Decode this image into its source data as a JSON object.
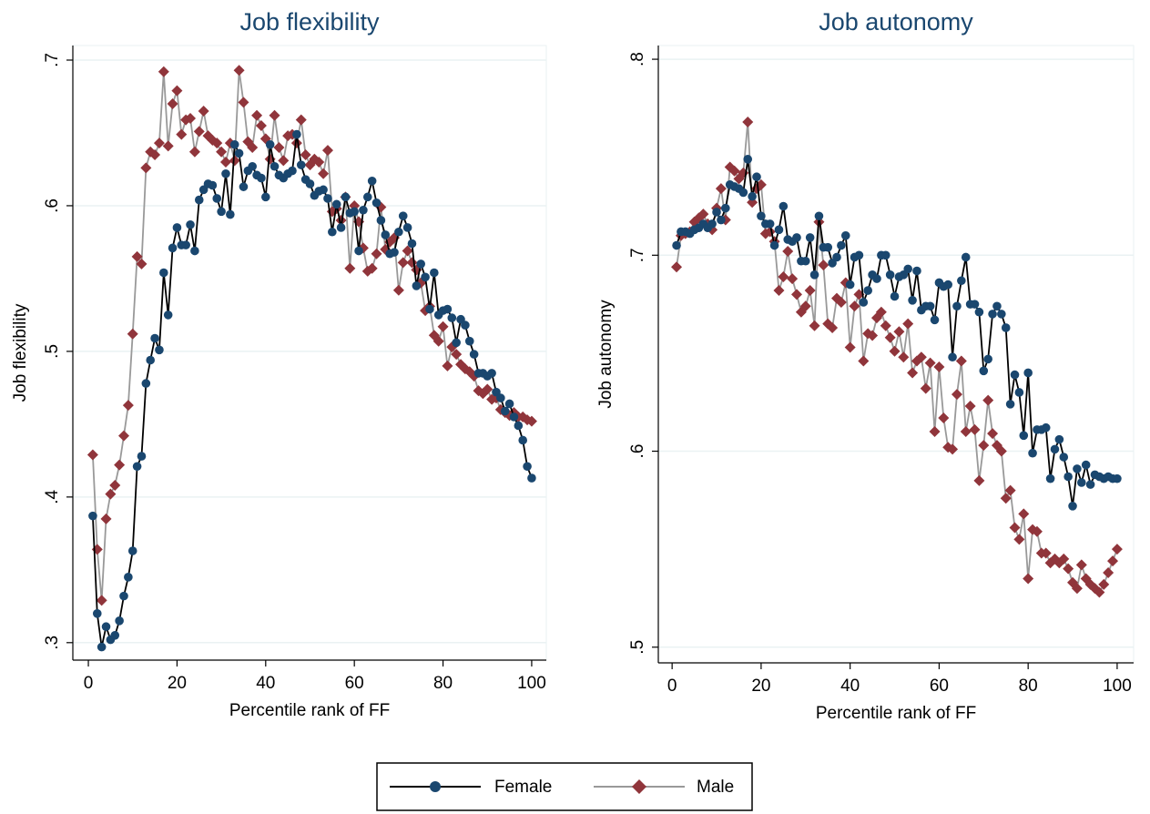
{
  "chart_data": [
    {
      "type": "line",
      "title": "Job flexibility",
      "xlabel": "Percentile rank of FF",
      "ylabel": "Job flexibility",
      "x": [
        1,
        2,
        3,
        4,
        5,
        6,
        7,
        8,
        9,
        10,
        11,
        12,
        13,
        14,
        15,
        16,
        17,
        18,
        19,
        20,
        21,
        22,
        23,
        24,
        25,
        26,
        27,
        28,
        29,
        30,
        31,
        32,
        33,
        34,
        35,
        36,
        37,
        38,
        39,
        40,
        41,
        42,
        43,
        44,
        45,
        46,
        47,
        48,
        49,
        50,
        51,
        52,
        53,
        54,
        55,
        56,
        57,
        58,
        59,
        60,
        61,
        62,
        63,
        64,
        65,
        66,
        67,
        68,
        69,
        70,
        71,
        72,
        73,
        74,
        75,
        76,
        77,
        78,
        79,
        80,
        81,
        82,
        83,
        84,
        85,
        86,
        87,
        88,
        89,
        90,
        91,
        92,
        93,
        94,
        95,
        96,
        97,
        98,
        99,
        100
      ],
      "series": [
        {
          "name": "Female",
          "color": "#1a476f",
          "line_color": "#000000",
          "marker": "circle",
          "values": [
            0.387,
            0.32,
            0.297,
            0.311,
            0.302,
            0.305,
            0.315,
            0.332,
            0.345,
            0.363,
            0.421,
            0.428,
            0.478,
            0.494,
            0.509,
            0.501,
            0.554,
            0.525,
            0.571,
            0.585,
            0.573,
            0.573,
            0.587,
            0.569,
            0.604,
            0.611,
            0.615,
            0.614,
            0.605,
            0.596,
            0.622,
            0.594,
            0.642,
            0.636,
            0.613,
            0.624,
            0.627,
            0.621,
            0.619,
            0.606,
            0.642,
            0.627,
            0.621,
            0.619,
            0.622,
            0.624,
            0.649,
            0.628,
            0.618,
            0.615,
            0.607,
            0.61,
            0.611,
            0.605,
            0.582,
            0.601,
            0.585,
            0.606,
            0.595,
            0.596,
            0.569,
            0.597,
            0.606,
            0.617,
            0.602,
            0.59,
            0.58,
            0.567,
            0.568,
            0.582,
            0.593,
            0.585,
            0.574,
            0.545,
            0.56,
            0.551,
            0.529,
            0.554,
            0.525,
            0.528,
            0.529,
            0.523,
            0.506,
            0.522,
            0.518,
            0.507,
            0.498,
            0.485,
            0.485,
            0.483,
            0.485,
            0.472,
            0.468,
            0.459,
            0.464,
            0.455,
            0.449,
            0.439,
            0.421,
            0.413
          ]
        },
        {
          "name": "Male",
          "color": "#90353b",
          "line_color": "#999999",
          "marker": "diamond",
          "values": [
            0.429,
            0.364,
            0.329,
            0.385,
            0.402,
            0.408,
            0.422,
            0.442,
            0.463,
            0.512,
            0.565,
            0.56,
            0.626,
            0.637,
            0.635,
            0.643,
            0.692,
            0.641,
            0.67,
            0.679,
            0.649,
            0.659,
            0.66,
            0.637,
            0.651,
            0.665,
            0.648,
            0.645,
            0.643,
            0.637,
            0.63,
            0.643,
            0.631,
            0.693,
            0.671,
            0.644,
            0.64,
            0.662,
            0.655,
            0.646,
            0.632,
            0.662,
            0.64,
            0.631,
            0.648,
            0.649,
            0.643,
            0.659,
            0.635,
            0.628,
            0.632,
            0.63,
            0.622,
            0.638,
            0.596,
            0.598,
            0.59,
            0.606,
            0.557,
            0.6,
            0.589,
            0.571,
            0.555,
            0.557,
            0.567,
            0.599,
            0.57,
            0.575,
            0.578,
            0.542,
            0.561,
            0.569,
            0.561,
            0.556,
            0.547,
            0.528,
            0.531,
            0.511,
            0.507,
            0.517,
            0.49,
            0.503,
            0.498,
            0.491,
            0.488,
            0.486,
            0.483,
            0.473,
            0.471,
            0.474,
            0.467,
            0.468,
            0.46,
            0.458,
            0.456,
            0.458,
            0.455,
            0.455,
            0.453,
            0.452
          ]
        }
      ],
      "xlim": [
        -3.5,
        103.3
      ],
      "xticks": [
        0,
        20,
        40,
        60,
        80,
        100
      ],
      "ylim": [
        0.288,
        0.71
      ],
      "yticks": [
        {
          "value": 0.3,
          "label": ".3"
        },
        {
          "value": 0.4,
          "label": ".4"
        },
        {
          "value": 0.5,
          "label": ".5"
        },
        {
          "value": 0.6,
          "label": ".6"
        },
        {
          "value": 0.7,
          "label": ".7"
        }
      ],
      "grid": true
    },
    {
      "type": "line",
      "title": "Job autonomy",
      "xlabel": "Percentile rank of FF",
      "ylabel": "Job autonomy",
      "x": [
        1,
        2,
        3,
        4,
        5,
        6,
        7,
        8,
        9,
        10,
        11,
        12,
        13,
        14,
        15,
        16,
        17,
        18,
        19,
        20,
        21,
        22,
        23,
        24,
        25,
        26,
        27,
        28,
        29,
        30,
        31,
        32,
        33,
        34,
        35,
        36,
        37,
        38,
        39,
        40,
        41,
        42,
        43,
        44,
        45,
        46,
        47,
        48,
        49,
        50,
        51,
        52,
        53,
        54,
        55,
        56,
        57,
        58,
        59,
        60,
        61,
        62,
        63,
        64,
        65,
        66,
        67,
        68,
        69,
        70,
        71,
        72,
        73,
        74,
        75,
        76,
        77,
        78,
        79,
        80,
        81,
        82,
        83,
        84,
        85,
        86,
        87,
        88,
        89,
        90,
        91,
        92,
        93,
        94,
        95,
        96,
        97,
        98,
        99,
        100
      ],
      "series": [
        {
          "name": "Female",
          "color": "#1a476f",
          "line_color": "#000000",
          "marker": "circle",
          "values": [
            0.705,
            0.712,
            0.712,
            0.711,
            0.713,
            0.714,
            0.716,
            0.714,
            0.716,
            0.722,
            0.718,
            0.724,
            0.736,
            0.735,
            0.734,
            0.732,
            0.749,
            0.73,
            0.74,
            0.72,
            0.716,
            0.716,
            0.705,
            0.713,
            0.725,
            0.708,
            0.707,
            0.709,
            0.697,
            0.697,
            0.709,
            0.69,
            0.72,
            0.704,
            0.704,
            0.696,
            0.699,
            0.705,
            0.71,
            0.685,
            0.699,
            0.7,
            0.676,
            0.682,
            0.69,
            0.688,
            0.7,
            0.7,
            0.69,
            0.679,
            0.689,
            0.69,
            0.693,
            0.677,
            0.692,
            0.672,
            0.674,
            0.674,
            0.667,
            0.686,
            0.684,
            0.685,
            0.648,
            0.674,
            0.687,
            0.699,
            0.675,
            0.675,
            0.671,
            0.641,
            0.647,
            0.67,
            0.674,
            0.67,
            0.663,
            0.624,
            0.639,
            0.63,
            0.608,
            0.64,
            0.599,
            0.611,
            0.611,
            0.612,
            0.586,
            0.601,
            0.606,
            0.597,
            0.587,
            0.572,
            0.591,
            0.584,
            0.593,
            0.583,
            0.588,
            0.587,
            0.586,
            0.587,
            0.586,
            0.586
          ]
        },
        {
          "name": "Male",
          "color": "#90353b",
          "line_color": "#999999",
          "marker": "diamond",
          "values": [
            0.694,
            0.71,
            0.711,
            0.712,
            0.717,
            0.719,
            0.721,
            0.716,
            0.713,
            0.724,
            0.734,
            0.718,
            0.745,
            0.743,
            0.739,
            0.742,
            0.768,
            0.727,
            0.734,
            0.736,
            0.711,
            0.712,
            0.707,
            0.682,
            0.689,
            0.702,
            0.688,
            0.68,
            0.671,
            0.674,
            0.682,
            0.664,
            0.717,
            0.695,
            0.665,
            0.663,
            0.678,
            0.676,
            0.686,
            0.653,
            0.674,
            0.68,
            0.646,
            0.66,
            0.659,
            0.668,
            0.671,
            0.664,
            0.658,
            0.651,
            0.661,
            0.648,
            0.665,
            0.64,
            0.646,
            0.648,
            0.632,
            0.645,
            0.61,
            0.643,
            0.617,
            0.602,
            0.601,
            0.629,
            0.646,
            0.61,
            0.623,
            0.611,
            0.585,
            0.603,
            0.626,
            0.609,
            0.603,
            0.6,
            0.576,
            0.58,
            0.561,
            0.555,
            0.568,
            0.535,
            0.56,
            0.559,
            0.548,
            0.548,
            0.543,
            0.545,
            0.543,
            0.545,
            0.54,
            0.533,
            0.53,
            0.542,
            0.535,
            0.532,
            0.53,
            0.528,
            0.532,
            0.538,
            0.544,
            0.55
          ]
        }
      ],
      "xlim": [
        -3.1,
        103.7
      ],
      "xticks": [
        0,
        20,
        40,
        60,
        80,
        100
      ],
      "ylim": [
        0.492,
        0.807
      ],
      "yticks": [
        {
          "value": 0.5,
          "label": ".5"
        },
        {
          "value": 0.6,
          "label": ".6"
        },
        {
          "value": 0.7,
          "label": ".7"
        },
        {
          "value": 0.8,
          "label": ".8"
        }
      ],
      "grid": true
    }
  ]
}
